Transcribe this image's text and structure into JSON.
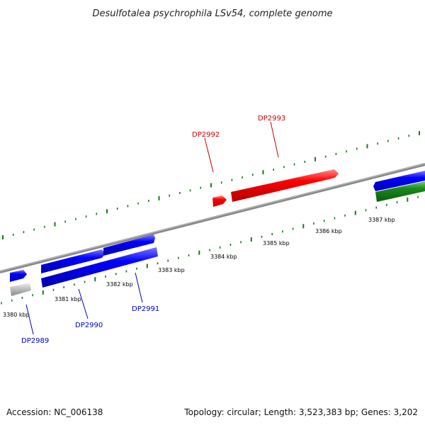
{
  "title": "Desulfotalea psychrophila LSv54, complete genome",
  "accession_label": "Accession: NC_006138",
  "summary_label": "Topology: circular; Length: 3,523,383 bp; Genes: 3,202",
  "colors": {
    "red_gene": "#ff0000",
    "blue_gene": "#0000ff",
    "green_gene": "#1a8a1a",
    "grey_gene": "#bbbbbb",
    "backbone": "#888888",
    "tick": "#1a7a1a",
    "red_label": "#cc0000",
    "blue_label": "#0000bb"
  },
  "scale_labels": [
    "3380 kbp",
    "3381 kbp",
    "3382 kbp",
    "3383 kbp",
    "3384 kbp",
    "3385 kbp",
    "3386 kbp",
    "3387 kbp"
  ],
  "genes": [
    {
      "name": "DP2989",
      "color": "blue"
    },
    {
      "name": "DP2990",
      "color": "blue"
    },
    {
      "name": "DP2991",
      "color": "blue"
    },
    {
      "name": "DP2992",
      "color": "red"
    },
    {
      "name": "DP2993",
      "color": "red"
    }
  ]
}
